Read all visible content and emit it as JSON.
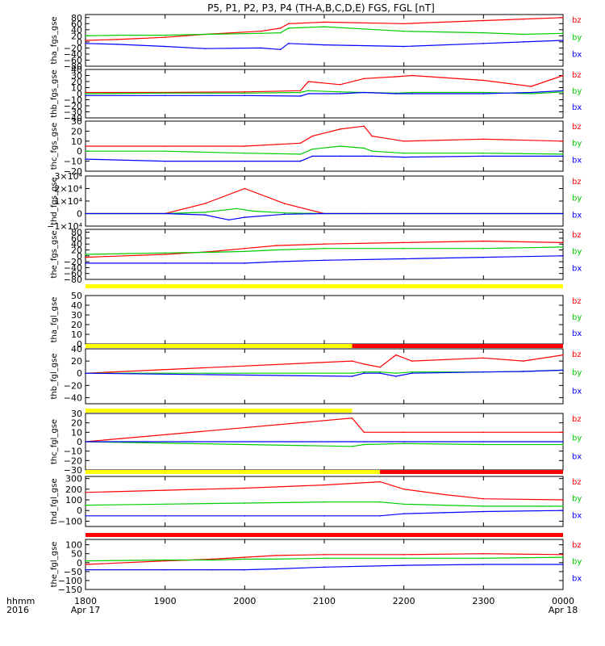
{
  "title": "P5, P1, P2, P3, P4 (TH-A,B,C,D,E) FGS, FGL [nT]",
  "colors": {
    "bx": "#0000ff",
    "by": "#00cc00",
    "bz": "#ff0000",
    "flag_yellow": "#ffff00",
    "flag_red": "#ff0000"
  },
  "legend": [
    "bz",
    "by",
    "bx"
  ],
  "time_axis": {
    "label_lines": [
      "hhmm",
      "2016"
    ],
    "ticks": [
      {
        "t": 0,
        "label": "1800",
        "sub": "Apr 17"
      },
      {
        "t": 1,
        "label": "1900",
        "sub": ""
      },
      {
        "t": 2,
        "label": "2000",
        "sub": ""
      },
      {
        "t": 3,
        "label": "2100",
        "sub": ""
      },
      {
        "t": 4,
        "label": "2200",
        "sub": ""
      },
      {
        "t": 5,
        "label": "2300",
        "sub": ""
      },
      {
        "t": 6,
        "label": "0000",
        "sub": "Apr 18"
      }
    ]
  },
  "chart_data": [
    {
      "type": "line",
      "ylabel": "tha_fgs_gse",
      "ylim": [
        -80,
        90
      ],
      "yticks": [
        -80,
        -60,
        -40,
        -20,
        0,
        20,
        40,
        60,
        80
      ],
      "yticklabels": [
        "−80",
        "−60",
        "−40",
        "−20",
        "0",
        "20",
        "40",
        "60",
        "80"
      ],
      "series": [
        {
          "name": "bz",
          "x": [
            0,
            0.4,
            1.0,
            1.5,
            2.2,
            2.45,
            2.55,
            3.0,
            4.0,
            5.0,
            5.5,
            6.0
          ],
          "values": [
            5,
            8,
            15,
            25,
            35,
            45,
            60,
            65,
            60,
            70,
            75,
            80
          ]
        },
        {
          "name": "by",
          "x": [
            0,
            0.4,
            1.0,
            1.5,
            2.2,
            2.45,
            2.55,
            3.0,
            4.0,
            5.0,
            5.5,
            6.0
          ],
          "values": [
            20,
            22,
            22,
            25,
            28,
            30,
            45,
            50,
            35,
            30,
            25,
            28
          ]
        },
        {
          "name": "bx",
          "x": [
            0,
            0.4,
            1.0,
            1.5,
            2.2,
            2.45,
            2.55,
            3.0,
            4.0,
            5.0,
            5.5,
            6.0
          ],
          "values": [
            -5,
            -8,
            -15,
            -22,
            -20,
            -25,
            -5,
            -10,
            -15,
            -5,
            0,
            5
          ]
        }
      ]
    },
    {
      "type": "line",
      "ylabel": "thb_fgs_gse",
      "ylim": [
        -40,
        40
      ],
      "yticks": [
        -40,
        -30,
        -20,
        -10,
        0,
        10,
        20,
        30,
        40
      ],
      "yticklabels": [
        "−40",
        "−30",
        "−20",
        "−10",
        "0",
        "10",
        "20",
        "30",
        "40"
      ],
      "series": [
        {
          "name": "bz",
          "x": [
            0,
            1.0,
            2.0,
            2.7,
            2.8,
            3.2,
            3.5,
            3.9,
            4.1,
            5.0,
            5.6,
            6.0
          ],
          "values": [
            2,
            2,
            3,
            5,
            20,
            15,
            25,
            28,
            30,
            22,
            12,
            30
          ]
        },
        {
          "name": "by",
          "x": [
            0,
            1.0,
            2.0,
            2.7,
            2.8,
            3.2,
            3.5,
            3.9,
            4.1,
            5.0,
            5.6,
            6.0
          ],
          "values": [
            0,
            1,
            1,
            2,
            5,
            3,
            2,
            1,
            2,
            2,
            0,
            3
          ]
        },
        {
          "name": "bx",
          "x": [
            0,
            1.0,
            2.0,
            2.7,
            2.8,
            3.2,
            3.5,
            3.9,
            4.1,
            5.0,
            5.6,
            6.0
          ],
          "values": [
            -3,
            -3,
            -3,
            -4,
            0,
            0,
            2,
            0,
            0,
            0,
            2,
            5
          ]
        }
      ]
    },
    {
      "type": "line",
      "ylabel": "thc_fgs_gse",
      "ylim": [
        -20,
        30
      ],
      "yticks": [
        -20,
        -10,
        0,
        10,
        20,
        30
      ],
      "yticklabels": [
        "−20",
        "−10",
        "0",
        "10",
        "20",
        "30"
      ],
      "series": [
        {
          "name": "bz",
          "x": [
            0,
            1.0,
            2.0,
            2.7,
            2.85,
            3.2,
            3.5,
            3.6,
            4.0,
            5.0,
            6.0
          ],
          "values": [
            5,
            5,
            5,
            8,
            15,
            22,
            25,
            15,
            10,
            12,
            10
          ]
        },
        {
          "name": "by",
          "x": [
            0,
            1.0,
            2.0,
            2.7,
            2.85,
            3.2,
            3.5,
            3.6,
            4.0,
            5.0,
            6.0
          ],
          "values": [
            0,
            0,
            -2,
            -3,
            2,
            5,
            3,
            0,
            -2,
            -2,
            -3
          ]
        },
        {
          "name": "bx",
          "x": [
            0,
            1.0,
            2.0,
            2.7,
            2.85,
            3.2,
            3.5,
            3.6,
            4.0,
            5.0,
            6.0
          ],
          "values": [
            -8,
            -10,
            -10,
            -10,
            -5,
            -5,
            -5,
            -5,
            -6,
            -5,
            -5
          ]
        }
      ]
    },
    {
      "type": "line",
      "ylabel": "thd_fgs_gse",
      "ylim": [
        -10000,
        30000
      ],
      "yticks": [
        -10000,
        0,
        10000,
        20000,
        30000
      ],
      "yticklabels": [
        "−1×10⁴",
        "0",
        "1×10⁴",
        "2×10⁴",
        "3×10⁴"
      ],
      "series": [
        {
          "name": "bz",
          "x": [
            0,
            1.0,
            1.5,
            2.0,
            2.5,
            3.0,
            3.5,
            6.0
          ],
          "values": [
            0,
            0,
            8000,
            20000,
            8000,
            0,
            0,
            0
          ]
        },
        {
          "name": "by",
          "x": [
            0,
            1.0,
            1.5,
            1.9,
            2.1,
            2.5,
            3.0,
            6.0
          ],
          "values": [
            0,
            0,
            1000,
            4000,
            2000,
            500,
            0,
            0
          ]
        },
        {
          "name": "bx",
          "x": [
            0,
            1.0,
            1.5,
            1.8,
            2.0,
            2.5,
            3.0,
            6.0
          ],
          "values": [
            0,
            0,
            -1000,
            -5000,
            -3000,
            -500,
            0,
            0
          ]
        }
      ]
    },
    {
      "type": "line",
      "ylabel": "the_fgs_gse",
      "ylim": [
        -80,
        90
      ],
      "yticks": [
        -80,
        -60,
        -40,
        -20,
        0,
        20,
        40,
        60,
        80
      ],
      "yticklabels": [
        "−80",
        "−60",
        "−40",
        "−20",
        "0",
        "20",
        "40",
        "60",
        "80"
      ],
      "series": [
        {
          "name": "bz",
          "x": [
            0,
            1.0,
            1.6,
            2.0,
            2.4,
            3.0,
            4.0,
            5.0,
            6.0
          ],
          "values": [
            -5,
            5,
            15,
            25,
            35,
            40,
            45,
            50,
            45
          ]
        },
        {
          "name": "by",
          "x": [
            0,
            1.0,
            1.6,
            2.0,
            2.4,
            3.0,
            4.0,
            5.0,
            6.0
          ],
          "values": [
            5,
            10,
            12,
            15,
            20,
            25,
            25,
            25,
            30
          ]
        },
        {
          "name": "bx",
          "x": [
            0,
            1.0,
            1.6,
            2.0,
            2.4,
            3.0,
            4.0,
            5.0,
            6.0
          ],
          "values": [
            -25,
            -25,
            -25,
            -25,
            -20,
            -15,
            -10,
            -5,
            0
          ]
        }
      ]
    },
    {
      "type": "line",
      "ylabel": "tha_fgl_gse",
      "ylim": [
        0,
        50
      ],
      "yticks": [
        0,
        10,
        20,
        30,
        40,
        50
      ],
      "yticklabels": [
        "0",
        "10",
        "20",
        "30",
        "40",
        "50"
      ],
      "series": []
    },
    {
      "type": "line",
      "ylabel": "thb_fgl_gse",
      "ylim": [
        -50,
        40
      ],
      "yticks": [
        -40,
        -20,
        0,
        20,
        40
      ],
      "yticklabels": [
        "−40",
        "−20",
        "0",
        "20",
        "40"
      ],
      "series": [
        {
          "name": "bz",
          "x": [
            0,
            3.35,
            3.5,
            3.7,
            3.9,
            4.1,
            5.0,
            5.5,
            6.0
          ],
          "values": [
            0,
            20,
            15,
            10,
            30,
            20,
            25,
            20,
            30
          ]
        },
        {
          "name": "by",
          "x": [
            0,
            3.35,
            3.5,
            3.7,
            3.9,
            4.1,
            5.0,
            5.5,
            6.0
          ],
          "values": [
            0,
            0,
            2,
            2,
            0,
            2,
            2,
            3,
            5
          ]
        },
        {
          "name": "bx",
          "x": [
            0,
            3.35,
            3.5,
            3.7,
            3.9,
            4.1,
            5.0,
            5.5,
            6.0
          ],
          "values": [
            0,
            -5,
            0,
            0,
            -5,
            0,
            2,
            3,
            5
          ]
        }
      ]
    },
    {
      "type": "line",
      "ylabel": "thc_fgl_gse",
      "ylim": [
        -30,
        30
      ],
      "yticks": [
        -30,
        -20,
        -10,
        0,
        10,
        20,
        30
      ],
      "yticklabels": [
        "−30",
        "−20",
        "−10",
        "0",
        "10",
        "20",
        "30"
      ],
      "series": [
        {
          "name": "bz",
          "x": [
            0,
            3.35,
            3.5,
            4.0,
            5.0,
            6.0
          ],
          "values": [
            0,
            25,
            10,
            10,
            10,
            10
          ]
        },
        {
          "name": "by",
          "x": [
            0,
            3.35,
            3.5,
            4.0,
            5.0,
            6.0
          ],
          "values": [
            0,
            -5,
            -3,
            -2,
            -3,
            -3
          ]
        },
        {
          "name": "bx",
          "x": [
            0,
            3.35,
            3.5,
            4.0,
            5.0,
            6.0
          ],
          "values": [
            0,
            0,
            0,
            0,
            0,
            0
          ]
        }
      ]
    },
    {
      "type": "line",
      "ylabel": "thd_fgl_gse",
      "ylim": [
        -150,
        320
      ],
      "yticks": [
        -100,
        0,
        100,
        200,
        300
      ],
      "yticklabels": [
        "−100",
        "0",
        "100",
        "200",
        "300"
      ],
      "series": [
        {
          "name": "bz",
          "x": [
            0,
            1.0,
            2.0,
            3.0,
            3.7,
            4.0,
            4.5,
            5.0,
            6.0
          ],
          "values": [
            170,
            190,
            210,
            240,
            270,
            200,
            150,
            110,
            100
          ]
        },
        {
          "name": "by",
          "x": [
            0,
            1.0,
            2.0,
            3.0,
            3.7,
            4.0,
            4.5,
            5.0,
            6.0
          ],
          "values": [
            50,
            60,
            70,
            80,
            80,
            60,
            50,
            40,
            40
          ]
        },
        {
          "name": "bx",
          "x": [
            0,
            1.0,
            2.0,
            3.0,
            3.7,
            4.0,
            4.5,
            5.0,
            6.0
          ],
          "values": [
            -50,
            -50,
            -50,
            -50,
            -50,
            -30,
            -20,
            -10,
            0
          ]
        }
      ]
    },
    {
      "type": "line",
      "ylabel": "the_fgl_gse",
      "ylim": [
        -150,
        130
      ],
      "yticks": [
        -150,
        -100,
        -50,
        0,
        50,
        100
      ],
      "yticklabels": [
        "−150",
        "−100",
        "−50",
        "0",
        "50",
        "100"
      ],
      "series": [
        {
          "name": "bz",
          "x": [
            0,
            1.0,
            1.6,
            2.0,
            2.4,
            3.0,
            4.0,
            5.0,
            6.0
          ],
          "values": [
            -10,
            10,
            20,
            30,
            40,
            45,
            45,
            50,
            45
          ]
        },
        {
          "name": "by",
          "x": [
            0,
            1.0,
            1.6,
            2.0,
            2.4,
            3.0,
            4.0,
            5.0,
            6.0
          ],
          "values": [
            10,
            15,
            15,
            20,
            20,
            25,
            25,
            25,
            30
          ]
        },
        {
          "name": "bx",
          "x": [
            0,
            1.0,
            1.6,
            2.0,
            2.4,
            3.0,
            4.0,
            5.0,
            6.0
          ],
          "values": [
            -40,
            -40,
            -40,
            -40,
            -35,
            -25,
            -15,
            -10,
            -10
          ]
        }
      ]
    }
  ],
  "flags": [
    {
      "before_panel": 5,
      "segments": [
        {
          "x0": 0,
          "x1": 6,
          "color": "yellow"
        }
      ]
    },
    {
      "before_panel": 6,
      "segments": [
        {
          "x0": 0,
          "x1": 3.35,
          "color": "yellow"
        },
        {
          "x0": 3.35,
          "x1": 6,
          "color": "red"
        }
      ]
    },
    {
      "before_panel": 7,
      "segments": [
        {
          "x0": 0,
          "x1": 3.35,
          "color": "yellow"
        }
      ]
    },
    {
      "before_panel": 8,
      "segments": [
        {
          "x0": 0,
          "x1": 3.7,
          "color": "yellow"
        },
        {
          "x0": 3.7,
          "x1": 6,
          "color": "red"
        }
      ]
    },
    {
      "before_panel": 9,
      "segments": [
        {
          "x0": 0,
          "x1": 6,
          "color": "red"
        }
      ]
    }
  ]
}
